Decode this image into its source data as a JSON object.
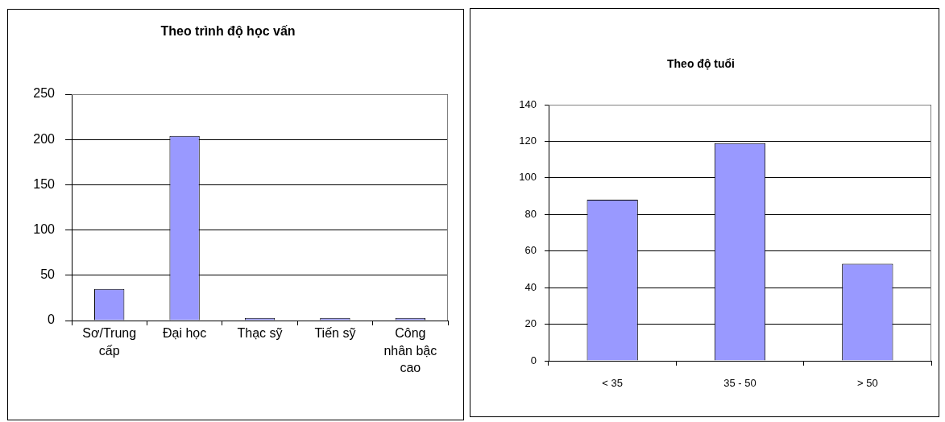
{
  "chart_data": [
    {
      "type": "bar",
      "title": "Theo trình độ học vấn",
      "categories": [
        "Sơ/Trung cấp",
        "Đại học",
        "Thạc sỹ",
        "Tiến sỹ",
        "Công nhân bậc cao"
      ],
      "values": [
        35,
        204,
        3,
        3,
        3
      ],
      "color": "#9999ff",
      "ylim": [
        0,
        250
      ],
      "yticks": [
        0,
        50,
        100,
        150,
        200,
        250
      ],
      "grid": "y"
    },
    {
      "type": "bar",
      "title": "Theo độ tuổi",
      "categories": [
        "< 35",
        "35 - 50",
        "> 50"
      ],
      "values": [
        88,
        119,
        53
      ],
      "color": "#9999ff",
      "ylim": [
        0,
        140
      ],
      "yticks": [
        0,
        20,
        40,
        60,
        80,
        100,
        120,
        140
      ],
      "grid": "y"
    }
  ]
}
